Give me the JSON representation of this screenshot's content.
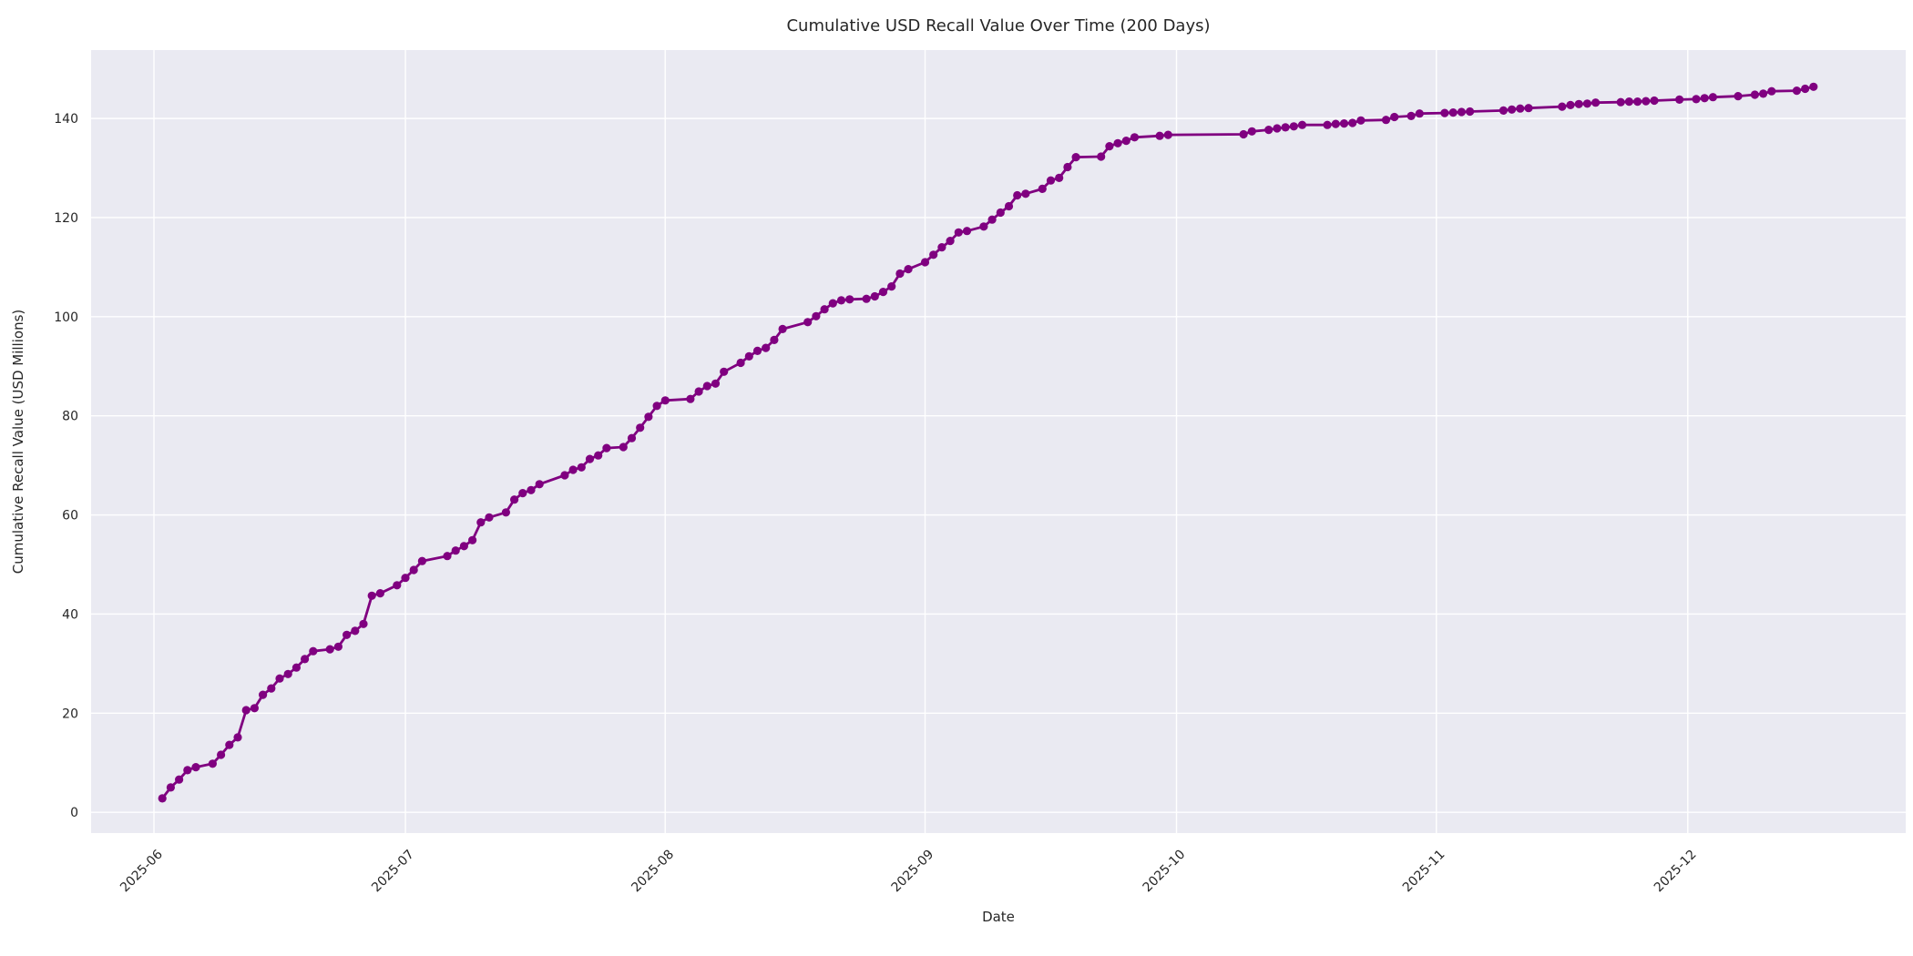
{
  "chart_data": {
    "type": "line",
    "title": "Cumulative USD Recall Value Over Time (200 Days)",
    "xlabel": "Date",
    "ylabel": "Cumulative Recall Value (USD Millions)",
    "x_tick_labels": [
      "2025-06",
      "2025-07",
      "2025-08",
      "2025-09",
      "2025-10",
      "2025-11",
      "2025-12"
    ],
    "y_ticks": [
      0,
      20,
      40,
      60,
      80,
      100,
      120,
      140
    ],
    "x_domain": [
      "2025-05-24T12:00:00",
      "2025-12-27T00:00:00"
    ],
    "y_domain": [
      -4.2,
      153.8
    ],
    "grid": true,
    "legend_position": "none",
    "marker": "circle",
    "colors": {
      "line": "#800080",
      "marker": "#800080",
      "plot_bg": "#EAEAF2",
      "grid": "#FFFFFF",
      "text": "#262626",
      "figure_bg": "#FFFFFF"
    },
    "series": [
      {
        "name": "Cumulative Recall Value",
        "dates": [
          "2025-06-02",
          "2025-06-03",
          "2025-06-04",
          "2025-06-05",
          "2025-06-06",
          "2025-06-08",
          "2025-06-09",
          "2025-06-10",
          "2025-06-11",
          "2025-06-12",
          "2025-06-13",
          "2025-06-14",
          "2025-06-15",
          "2025-06-16",
          "2025-06-17",
          "2025-06-18",
          "2025-06-19",
          "2025-06-20",
          "2025-06-22",
          "2025-06-23",
          "2025-06-24",
          "2025-06-25",
          "2025-06-26",
          "2025-06-27",
          "2025-06-28",
          "2025-06-30",
          "2025-07-01",
          "2025-07-02",
          "2025-07-03",
          "2025-07-06",
          "2025-07-07",
          "2025-07-08",
          "2025-07-09",
          "2025-07-10",
          "2025-07-11",
          "2025-07-13",
          "2025-07-14",
          "2025-07-15",
          "2025-07-16",
          "2025-07-17",
          "2025-07-20",
          "2025-07-21",
          "2025-07-22",
          "2025-07-23",
          "2025-07-24",
          "2025-07-25",
          "2025-07-27",
          "2025-07-28",
          "2025-07-29",
          "2025-07-30",
          "2025-07-31",
          "2025-08-01",
          "2025-08-04",
          "2025-08-05",
          "2025-08-06",
          "2025-08-07",
          "2025-08-08",
          "2025-08-10",
          "2025-08-11",
          "2025-08-12",
          "2025-08-13",
          "2025-08-14",
          "2025-08-15",
          "2025-08-18",
          "2025-08-19",
          "2025-08-20",
          "2025-08-21",
          "2025-08-22",
          "2025-08-23",
          "2025-08-25",
          "2025-08-26",
          "2025-08-27",
          "2025-08-28",
          "2025-08-29",
          "2025-08-30",
          "2025-09-01",
          "2025-09-02",
          "2025-09-03",
          "2025-09-04",
          "2025-09-05",
          "2025-09-06",
          "2025-09-08",
          "2025-09-09",
          "2025-09-10",
          "2025-09-11",
          "2025-09-12",
          "2025-09-13",
          "2025-09-15",
          "2025-09-16",
          "2025-09-17",
          "2025-09-18",
          "2025-09-19",
          "2025-09-22",
          "2025-09-23",
          "2025-09-24",
          "2025-09-25",
          "2025-09-26",
          "2025-09-29",
          "2025-09-30",
          "2025-10-09",
          "2025-10-10",
          "2025-10-12",
          "2025-10-13",
          "2025-10-14",
          "2025-10-15",
          "2025-10-16",
          "2025-10-19",
          "2025-10-20",
          "2025-10-21",
          "2025-10-22",
          "2025-10-23",
          "2025-10-26",
          "2025-10-27",
          "2025-10-29",
          "2025-10-30",
          "2025-11-02",
          "2025-11-03",
          "2025-11-04",
          "2025-11-05",
          "2025-11-09",
          "2025-11-10",
          "2025-11-11",
          "2025-11-12",
          "2025-11-16",
          "2025-11-17",
          "2025-11-18",
          "2025-11-19",
          "2025-11-20",
          "2025-11-23",
          "2025-11-24",
          "2025-11-25",
          "2025-11-26",
          "2025-11-27",
          "2025-11-30",
          "2025-12-02",
          "2025-12-03",
          "2025-12-04",
          "2025-12-07",
          "2025-12-09",
          "2025-12-10",
          "2025-12-11",
          "2025-12-14",
          "2025-12-15",
          "2025-12-16"
        ],
        "values": [
          2.8,
          5.0,
          6.6,
          8.5,
          9.1,
          9.8,
          11.6,
          13.6,
          15.1,
          20.6,
          21.0,
          23.7,
          25.0,
          27.0,
          27.9,
          29.2,
          30.9,
          32.5,
          32.9,
          33.4,
          35.8,
          36.6,
          38.0,
          43.7,
          44.2,
          45.8,
          47.3,
          48.9,
          50.7,
          51.7,
          52.8,
          53.7,
          54.9,
          58.5,
          59.5,
          60.5,
          63.1,
          64.4,
          65.0,
          66.2,
          68.0,
          69.1,
          69.6,
          71.3,
          72.0,
          73.5,
          73.7,
          75.5,
          77.6,
          79.8,
          82.0,
          83.1,
          83.4,
          84.9,
          86.0,
          86.5,
          88.9,
          90.7,
          92.0,
          93.1,
          93.7,
          95.3,
          97.5,
          98.9,
          100.1,
          101.5,
          102.7,
          103.3,
          103.5,
          103.6,
          104.1,
          105.0,
          106.1,
          108.7,
          109.6,
          111.0,
          112.5,
          114.0,
          115.3,
          117.0,
          117.3,
          118.2,
          119.6,
          121.0,
          122.3,
          124.5,
          124.8,
          125.8,
          127.5,
          128.0,
          130.2,
          132.2,
          132.3,
          134.4,
          135.0,
          135.5,
          136.2,
          136.5,
          136.7,
          136.8,
          137.4,
          137.7,
          138.0,
          138.2,
          138.4,
          138.7,
          138.7,
          138.9,
          139.0,
          139.1,
          139.6,
          139.7,
          140.3,
          140.5,
          141.0,
          141.1,
          141.2,
          141.3,
          141.4,
          141.6,
          141.8,
          142.0,
          142.1,
          142.4,
          142.7,
          142.9,
          143.0,
          143.2,
          143.3,
          143.4,
          143.4,
          143.5,
          143.6,
          143.8,
          143.9,
          144.1,
          144.3,
          144.5,
          144.8,
          145.0,
          145.5,
          145.6,
          146.0,
          146.4
        ]
      }
    ]
  }
}
